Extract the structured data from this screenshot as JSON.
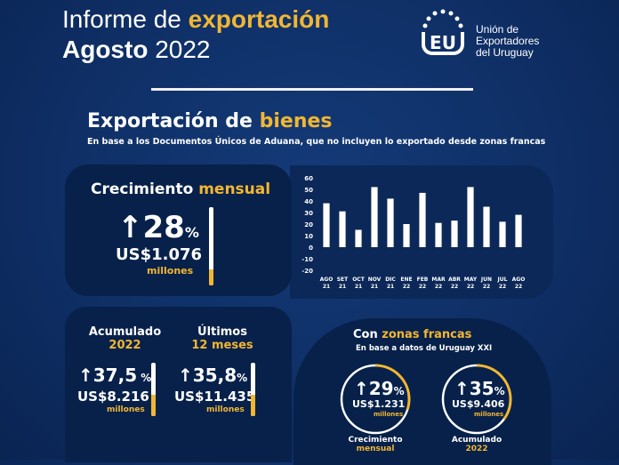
{
  "header": {
    "title_prefix": "Informe de ",
    "title_highlight": "exportación",
    "subtitle_bold": "Agosto",
    "subtitle_rest": " 2022"
  },
  "org": {
    "logo_text": "EU",
    "line1": "Unión de",
    "line2": "Exportadores",
    "line3": "del Uruguay"
  },
  "section": {
    "title_prefix": "Exportación de ",
    "title_highlight": "bienes",
    "subtitle": "En base a los Documentos Únicos de Aduana, que no incluyen lo exportado desde zonas francas"
  },
  "monthly": {
    "label": "Crecimiento",
    "label_highlight": " mensual",
    "arrow": "↑",
    "pct": "28",
    "pct_sign": "%",
    "usd": "US$1.076",
    "unit": "millones",
    "fill": 0.2
  },
  "accumulated": {
    "label": "Acumulado",
    "label_highlight": "2022",
    "arrow": "↑",
    "pct": "37,5",
    "pct_sign": " %",
    "usd": "US$8.216",
    "unit": "millones",
    "fill": 0.4
  },
  "last12": {
    "label": "Últimos",
    "label_highlight": "12 meses",
    "arrow": "↑",
    "pct": "35,8",
    "pct_sign": "%",
    "usd": "US$11.435",
    "unit": "millones",
    "fill": 0.4
  },
  "free_zones": {
    "title_prefix": "Con ",
    "title_highlight": "zonas francas",
    "subtitle": "En base a datos de Uruguay XXI",
    "monthly": {
      "arrow": "↑",
      "pct": "29",
      "pct_sign": "%",
      "usd": "US$1.231",
      "unit": "millones",
      "label": "Crecimiento",
      "label_highlight": "mensual",
      "fill": 0.3
    },
    "accumulated": {
      "arrow": "↑",
      "pct": "35",
      "pct_sign": "%",
      "usd": "US$9.406",
      "unit": "millones",
      "label": "Acumulado",
      "label_highlight": "2022",
      "fill": 0.35
    }
  },
  "colors": {
    "accent": "#f2b632",
    "background": "#0f2f66",
    "panel": "#07214a"
  },
  "chart_data": {
    "type": "bar",
    "categories": [
      [
        "AGO",
        "21"
      ],
      [
        "SET",
        "21"
      ],
      [
        "OCT",
        "21"
      ],
      [
        "NOV",
        "21"
      ],
      [
        "DIC",
        "21"
      ],
      [
        "ENE",
        "22"
      ],
      [
        "FEB",
        "22"
      ],
      [
        "MAR",
        "22"
      ],
      [
        "ABR",
        "22"
      ],
      [
        "MAY",
        "22"
      ],
      [
        "JUN",
        "22"
      ],
      [
        "JUL",
        "22"
      ],
      [
        "AGO",
        "22"
      ]
    ],
    "values": [
      38,
      31,
      15,
      52,
      42,
      20,
      47,
      21,
      23,
      52,
      35,
      22,
      28
    ],
    "ylim": [
      -20,
      60
    ],
    "yticks": [
      "60",
      "50",
      "40",
      "30",
      "20",
      "10",
      "0",
      "-10",
      "-20"
    ],
    "bar_color": "#ffffff",
    "grid": false
  }
}
